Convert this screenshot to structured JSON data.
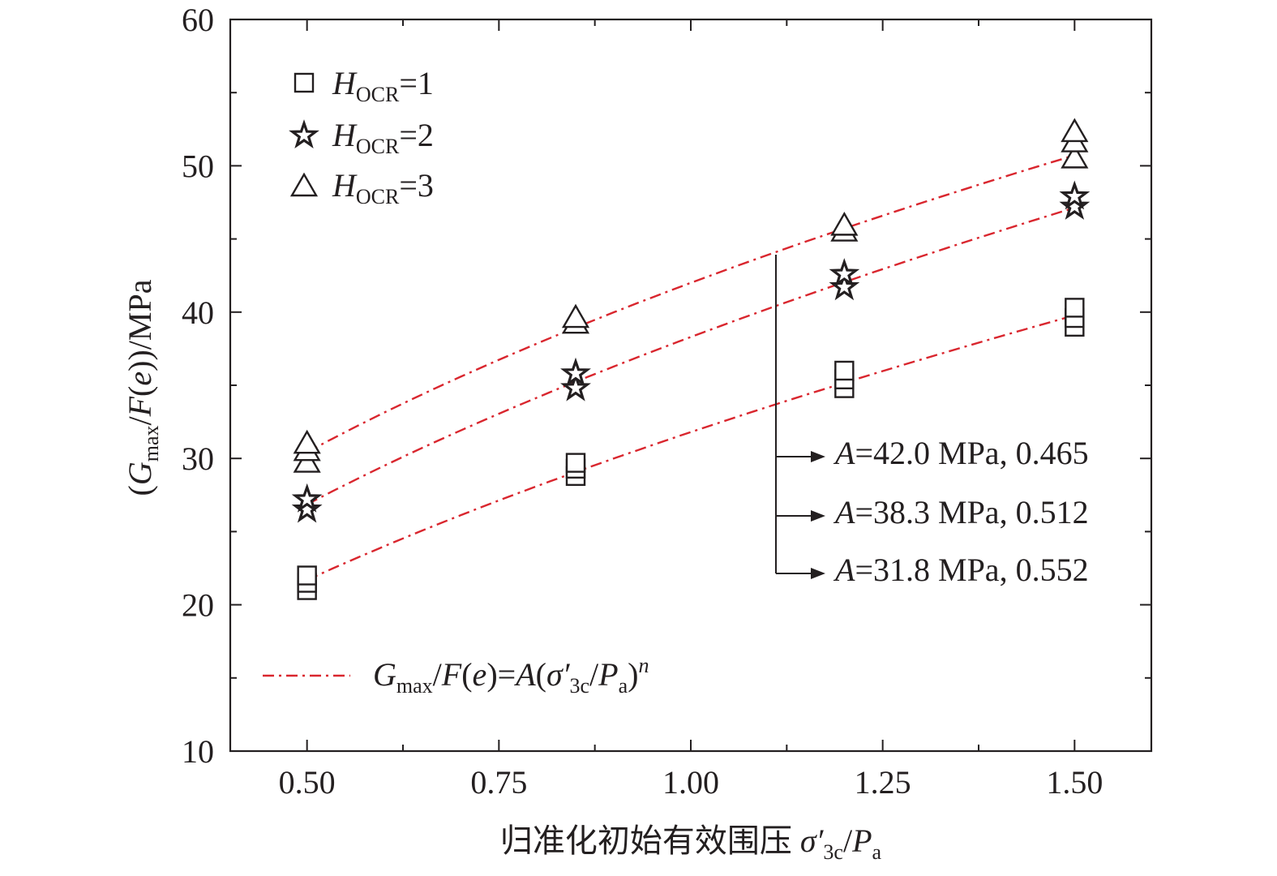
{
  "chart_data": {
    "type": "scatter",
    "xlabel_main": "归准化初始有效围压 ",
    "xlabel_sym": "σ′",
    "xlabel_sym_sub": "3c",
    "xlabel_slash": "/",
    "xlabel_p": "P",
    "xlabel_p_sub": "a",
    "ylabel_open": "(",
    "ylabel_g": "G",
    "ylabel_g_sub": "max",
    "ylabel_slash": "/",
    "ylabel_f": "F",
    "ylabel_paren1": "(",
    "ylabel_e": "e",
    "ylabel_rest": "))/MPa",
    "xlim": [
      0.4,
      1.6
    ],
    "ylim": [
      10,
      60
    ],
    "xticks": [
      0.5,
      0.75,
      1.0,
      1.25,
      1.5
    ],
    "xtick_labels": [
      "0.50",
      "0.75",
      "1.00",
      "1.25",
      "1.50"
    ],
    "xticks_minor": [
      0.625,
      0.875,
      1.125,
      1.375
    ],
    "yticks": [
      10,
      20,
      30,
      40,
      50,
      60
    ],
    "ytick_labels": [
      "10",
      "20",
      "30",
      "40",
      "50",
      "60"
    ],
    "yticks_minor": [
      15,
      25,
      35,
      45,
      55
    ],
    "legend_placement": "top-left",
    "series": [
      {
        "name_main": "H",
        "name_sub": "OCR",
        "name_value": "=1",
        "marker": "square",
        "color": "#231f20",
        "points": [
          {
            "x": 0.5,
            "y": [
              21.0,
              21.5,
              22.0
            ]
          },
          {
            "x": 0.85,
            "y": [
              28.8,
              29.3,
              29.7
            ]
          },
          {
            "x": 1.2,
            "y": [
              34.8,
              35.4,
              36.0
            ]
          },
          {
            "x": 1.5,
            "y": [
              39.0,
              39.6,
              40.3
            ]
          }
        ]
      },
      {
        "name_main": "H",
        "name_sub": "OCR",
        "name_value": "=2",
        "marker": "star",
        "color": "#231f20",
        "points": [
          {
            "x": 0.5,
            "y": [
              26.5,
              27.2
            ]
          },
          {
            "x": 0.85,
            "y": [
              34.8,
              35.8
            ]
          },
          {
            "x": 1.2,
            "y": [
              41.7,
              42.6
            ]
          },
          {
            "x": 1.5,
            "y": [
              47.2,
              47.9
            ]
          }
        ]
      },
      {
        "name_main": "H",
        "name_sub": "OCR",
        "name_value": "=3",
        "marker": "triangle",
        "color": "#231f20",
        "points": [
          {
            "x": 0.5,
            "y": [
              29.7,
              30.5,
              31.0
            ]
          },
          {
            "x": 0.85,
            "y": [
              39.2,
              39.6
            ]
          },
          {
            "x": 1.2,
            "y": [
              45.5,
              45.9
            ]
          },
          {
            "x": 1.5,
            "y": [
              50.5,
              51.6,
              52.3
            ]
          }
        ]
      }
    ],
    "fits": [
      {
        "A": 42.0,
        "n": 0.465,
        "color": "#d9262e",
        "label_a": "A",
        "label_rest": "=42.0 MPa, 0.465"
      },
      {
        "A": 38.3,
        "n": 0.512,
        "color": "#d9262e",
        "label_a": "A",
        "label_rest": "=38.3 MPa, 0.512"
      },
      {
        "A": 31.8,
        "n": 0.552,
        "color": "#d9262e",
        "label_a": "A",
        "label_rest": "=31.8 MPa, 0.552"
      }
    ],
    "fit_x_range": [
      0.5,
      1.5
    ],
    "fit_legend": {
      "g": "G",
      "g_sub": "max",
      "slash1": "/",
      "f": "F",
      "open": "(",
      "e": "e",
      "mid": ")=",
      "a": "A",
      "open2": "(",
      "sigma": "σ′",
      "sigma_sub": "3c",
      "slash2": "/",
      "p": "P",
      "p_sub": "a",
      "close": ")",
      "n": "n"
    }
  }
}
